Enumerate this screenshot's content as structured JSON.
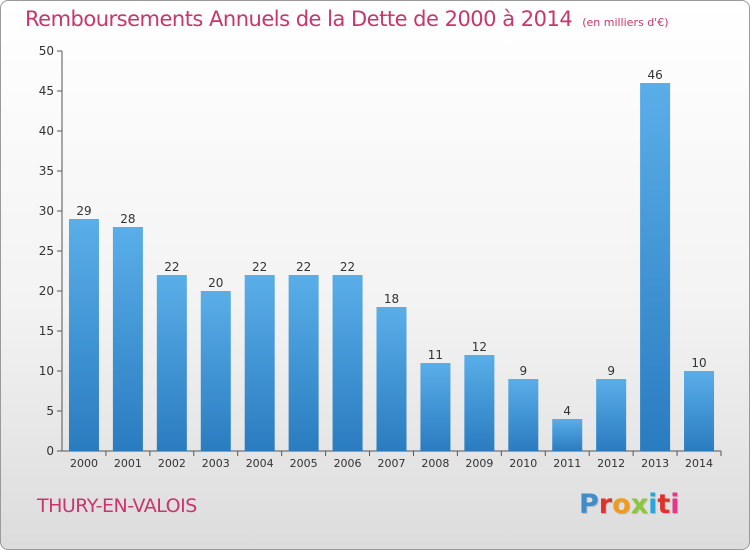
{
  "header": {
    "title": "Remboursements Annuels de la Dette de 2000 à 2014",
    "unit": "(en milliers d'€)"
  },
  "footer": {
    "place": "THURY-EN-VALOIS",
    "brand": "Proxiti"
  },
  "colors": {
    "title": "#c8366b",
    "bar_top": "#5aaee8",
    "bar_bottom": "#2a7cc0"
  },
  "chart_data": {
    "type": "bar",
    "title": "Remboursements Annuels de la Dette de 2000 à 2014",
    "subtitle": "(en milliers d'€)",
    "xlabel": "",
    "ylabel": "",
    "categories": [
      "2000",
      "2001",
      "2002",
      "2003",
      "2004",
      "2005",
      "2006",
      "2007",
      "2008",
      "2009",
      "2010",
      "2011",
      "2012",
      "2013",
      "2014"
    ],
    "values": [
      29,
      28,
      22,
      20,
      22,
      22,
      22,
      18,
      11,
      12,
      9,
      4,
      9,
      46,
      10
    ],
    "ylim": [
      0,
      50
    ],
    "yticks": [
      0,
      5,
      10,
      15,
      20,
      25,
      30,
      35,
      40,
      45,
      50
    ],
    "grid": false,
    "data_labels": true
  }
}
